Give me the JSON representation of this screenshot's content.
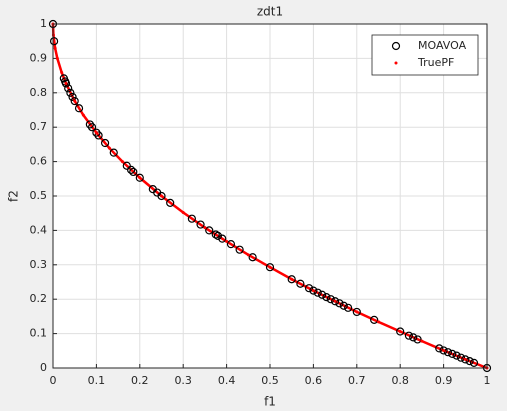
{
  "chart_data": {
    "type": "scatter",
    "title": "zdt1",
    "x_label": "f1",
    "y_label": "f2",
    "xlim": [
      0,
      1
    ],
    "ylim": [
      0,
      1
    ],
    "xticks": [
      0,
      0.1,
      0.2,
      0.3,
      0.4,
      0.5,
      0.6,
      0.7,
      0.8,
      0.9,
      1
    ],
    "yticks": [
      0,
      0.1,
      0.2,
      0.3,
      0.4,
      0.5,
      0.6,
      0.7,
      0.8,
      0.9,
      1
    ],
    "grid": true,
    "legend": "upper right",
    "series": [
      {
        "name": "MOAVOA",
        "color": "#000000",
        "x": [
          0,
          0.0025,
          0.025,
          0.028,
          0.03,
          0.035,
          0.04,
          0.045,
          0.05,
          0.06,
          0.085,
          0.09,
          0.1,
          0.105,
          0.12,
          0.14,
          0.17,
          0.18,
          0.185,
          0.2,
          0.23,
          0.24,
          0.25,
          0.27,
          0.32,
          0.34,
          0.36,
          0.375,
          0.38,
          0.39,
          0.41,
          0.43,
          0.46,
          0.5,
          0.55,
          0.57,
          0.59,
          0.6,
          0.61,
          0.62,
          0.63,
          0.64,
          0.65,
          0.66,
          0.67,
          0.68,
          0.7,
          0.74,
          0.8,
          0.82,
          0.83,
          0.84,
          0.89,
          0.9,
          0.91,
          0.92,
          0.93,
          0.94,
          0.95,
          0.96,
          0.97,
          1
        ],
        "values": [
          1,
          0.95,
          0.842,
          0.833,
          0.827,
          0.813,
          0.8,
          0.788,
          0.776,
          0.755,
          0.708,
          0.7,
          0.684,
          0.676,
          0.654,
          0.626,
          0.588,
          0.576,
          0.57,
          0.553,
          0.52,
          0.51,
          0.5,
          0.48,
          0.434,
          0.417,
          0.4,
          0.388,
          0.384,
          0.376,
          0.36,
          0.344,
          0.322,
          0.293,
          0.258,
          0.245,
          0.232,
          0.225,
          0.219,
          0.213,
          0.206,
          0.2,
          0.194,
          0.188,
          0.181,
          0.175,
          0.163,
          0.14,
          0.106,
          0.094,
          0.089,
          0.083,
          0.057,
          0.051,
          0.046,
          0.041,
          0.036,
          0.03,
          0.025,
          0.02,
          0.015,
          0
        ]
      },
      {
        "name": "TruePF",
        "color": "#ff0000",
        "x": [
          0,
          0.001,
          0.005,
          0.01,
          0.02,
          0.03,
          0.05,
          0.07,
          0.1,
          0.13,
          0.16,
          0.2,
          0.25,
          0.3,
          0.35,
          0.4,
          0.45,
          0.5,
          0.55,
          0.6,
          0.65,
          0.7,
          0.75,
          0.8,
          0.85,
          0.9,
          0.95,
          1
        ],
        "values": [
          1,
          0.968,
          0.929,
          0.9,
          0.859,
          0.827,
          0.776,
          0.735,
          0.684,
          0.639,
          0.6,
          0.553,
          0.5,
          0.452,
          0.408,
          0.368,
          0.329,
          0.293,
          0.258,
          0.225,
          0.194,
          0.163,
          0.134,
          0.106,
          0.078,
          0.051,
          0.025,
          0
        ]
      }
    ]
  }
}
